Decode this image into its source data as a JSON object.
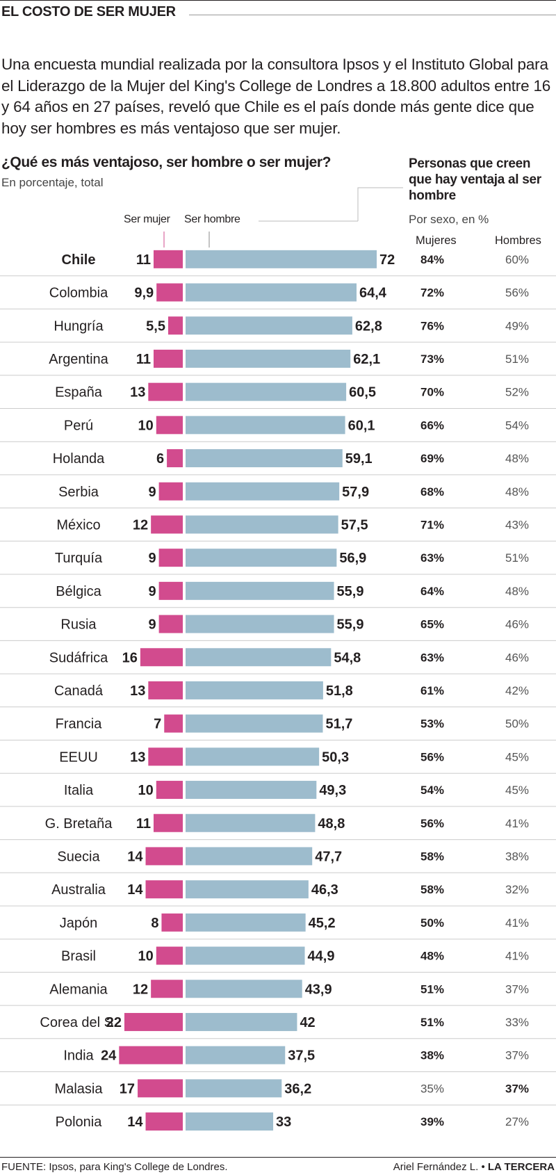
{
  "header": {
    "title": "EL COSTO DE SER MUJER",
    "intro": "Una encuesta mundial realizada por la consultora Ipsos y el Instituto Global para el Liderazgo de la Mujer del King's College de Londres a 18.800 adultos entre 16 y 64 años en 27 países, reveló que Chile es el país donde más gente dice que hoy ser hombres es más ventajoso que ser mujer."
  },
  "left_chart": {
    "title": "¿Qué es más ventajoso, ser hombre o ser mujer?",
    "subtitle": "En porcentaje, total",
    "legend_mujer": "Ser mujer",
    "legend_hombre": "Ser hombre"
  },
  "right_table": {
    "title": "Personas que creen que hay ventaja al ser hombre",
    "subtitle": "Por sexo, en %",
    "col_mujeres": "Mujeres",
    "col_hombres": "Hombres"
  },
  "colors": {
    "mujer": "#d24b8e",
    "hombre": "#9dbccd",
    "text": "#231f20",
    "divider": "#cccccc"
  },
  "chart_data": {
    "type": "bar",
    "categories": [
      "Chile",
      "Colombia",
      "Hungría",
      "Argentina",
      "España",
      "Perú",
      "Holanda",
      "Serbia",
      "México",
      "Turquía",
      "Bélgica",
      "Rusia",
      "Sudáfrica",
      "Canadá",
      "Francia",
      "EEUU",
      "Italia",
      "G. Bretaña",
      "Suecia",
      "Australia",
      "Japón",
      "Brasil",
      "Alemania",
      "Corea del S.",
      "India",
      "Malasia",
      "Polonia"
    ],
    "series": [
      {
        "name": "Ser mujer",
        "values": [
          11,
          9.9,
          5.5,
          11,
          13,
          10,
          6,
          9,
          12,
          9,
          9,
          9,
          16,
          13,
          7,
          13,
          10,
          11,
          14,
          14,
          8,
          10,
          12,
          22,
          24,
          17,
          14
        ],
        "labels": [
          "11",
          "9,9",
          "5,5",
          "11",
          "13",
          "10",
          "6",
          "9",
          "12",
          "9",
          "9",
          "9",
          "16",
          "13",
          "7",
          "13",
          "10",
          "11",
          "14",
          "14",
          "8",
          "10",
          "12",
          "22",
          "24",
          "17",
          "14"
        ]
      },
      {
        "name": "Ser hombre",
        "values": [
          72,
          64.4,
          62.8,
          62.1,
          60.5,
          60.1,
          59.1,
          57.9,
          57.5,
          56.9,
          55.9,
          55.9,
          54.8,
          51.8,
          51.7,
          50.3,
          49.3,
          48.8,
          47.7,
          46.3,
          45.2,
          44.9,
          43.9,
          42,
          37.5,
          36.2,
          33
        ],
        "labels": [
          "72",
          "64,4",
          "62,8",
          "62,1",
          "60,5",
          "60,1",
          "59,1",
          "57,9",
          "57,5",
          "56,9",
          "55,9",
          "55,9",
          "54,8",
          "51,8",
          "51,7",
          "50,3",
          "49,3",
          "48,8",
          "47,7",
          "46,3",
          "45,2",
          "44,9",
          "43,9",
          "42",
          "37,5",
          "36,2",
          "33"
        ]
      }
    ],
    "table": {
      "mujeres": [
        "84%",
        "72%",
        "76%",
        "73%",
        "70%",
        "66%",
        "69%",
        "68%",
        "71%",
        "63%",
        "64%",
        "65%",
        "63%",
        "61%",
        "53%",
        "56%",
        "54%",
        "56%",
        "58%",
        "58%",
        "50%",
        "48%",
        "51%",
        "51%",
        "38%",
        "35%",
        "39%"
      ],
      "hombres": [
        "60%",
        "56%",
        "49%",
        "51%",
        "52%",
        "54%",
        "48%",
        "48%",
        "43%",
        "51%",
        "48%",
        "46%",
        "46%",
        "42%",
        "50%",
        "45%",
        "45%",
        "41%",
        "38%",
        "32%",
        "41%",
        "41%",
        "37%",
        "33%",
        "37%",
        "37%",
        "27%"
      ],
      "bold_column": [
        "mujeres",
        "mujeres",
        "mujeres",
        "mujeres",
        "mujeres",
        "mujeres",
        "mujeres",
        "mujeres",
        "mujeres",
        "mujeres",
        "mujeres",
        "mujeres",
        "mujeres",
        "mujeres",
        "mujeres",
        "mujeres",
        "mujeres",
        "mujeres",
        "mujeres",
        "mujeres",
        "mujeres",
        "mujeres",
        "mujeres",
        "mujeres",
        "mujeres",
        "hombres",
        "mujeres"
      ]
    },
    "highlight_category": "Chile"
  },
  "footer": {
    "source": "FUENTE: Ipsos, para King's College de Londres.",
    "author": "Ariel Fernández L.",
    "separator": " • ",
    "outlet": "LA TERCERA"
  }
}
